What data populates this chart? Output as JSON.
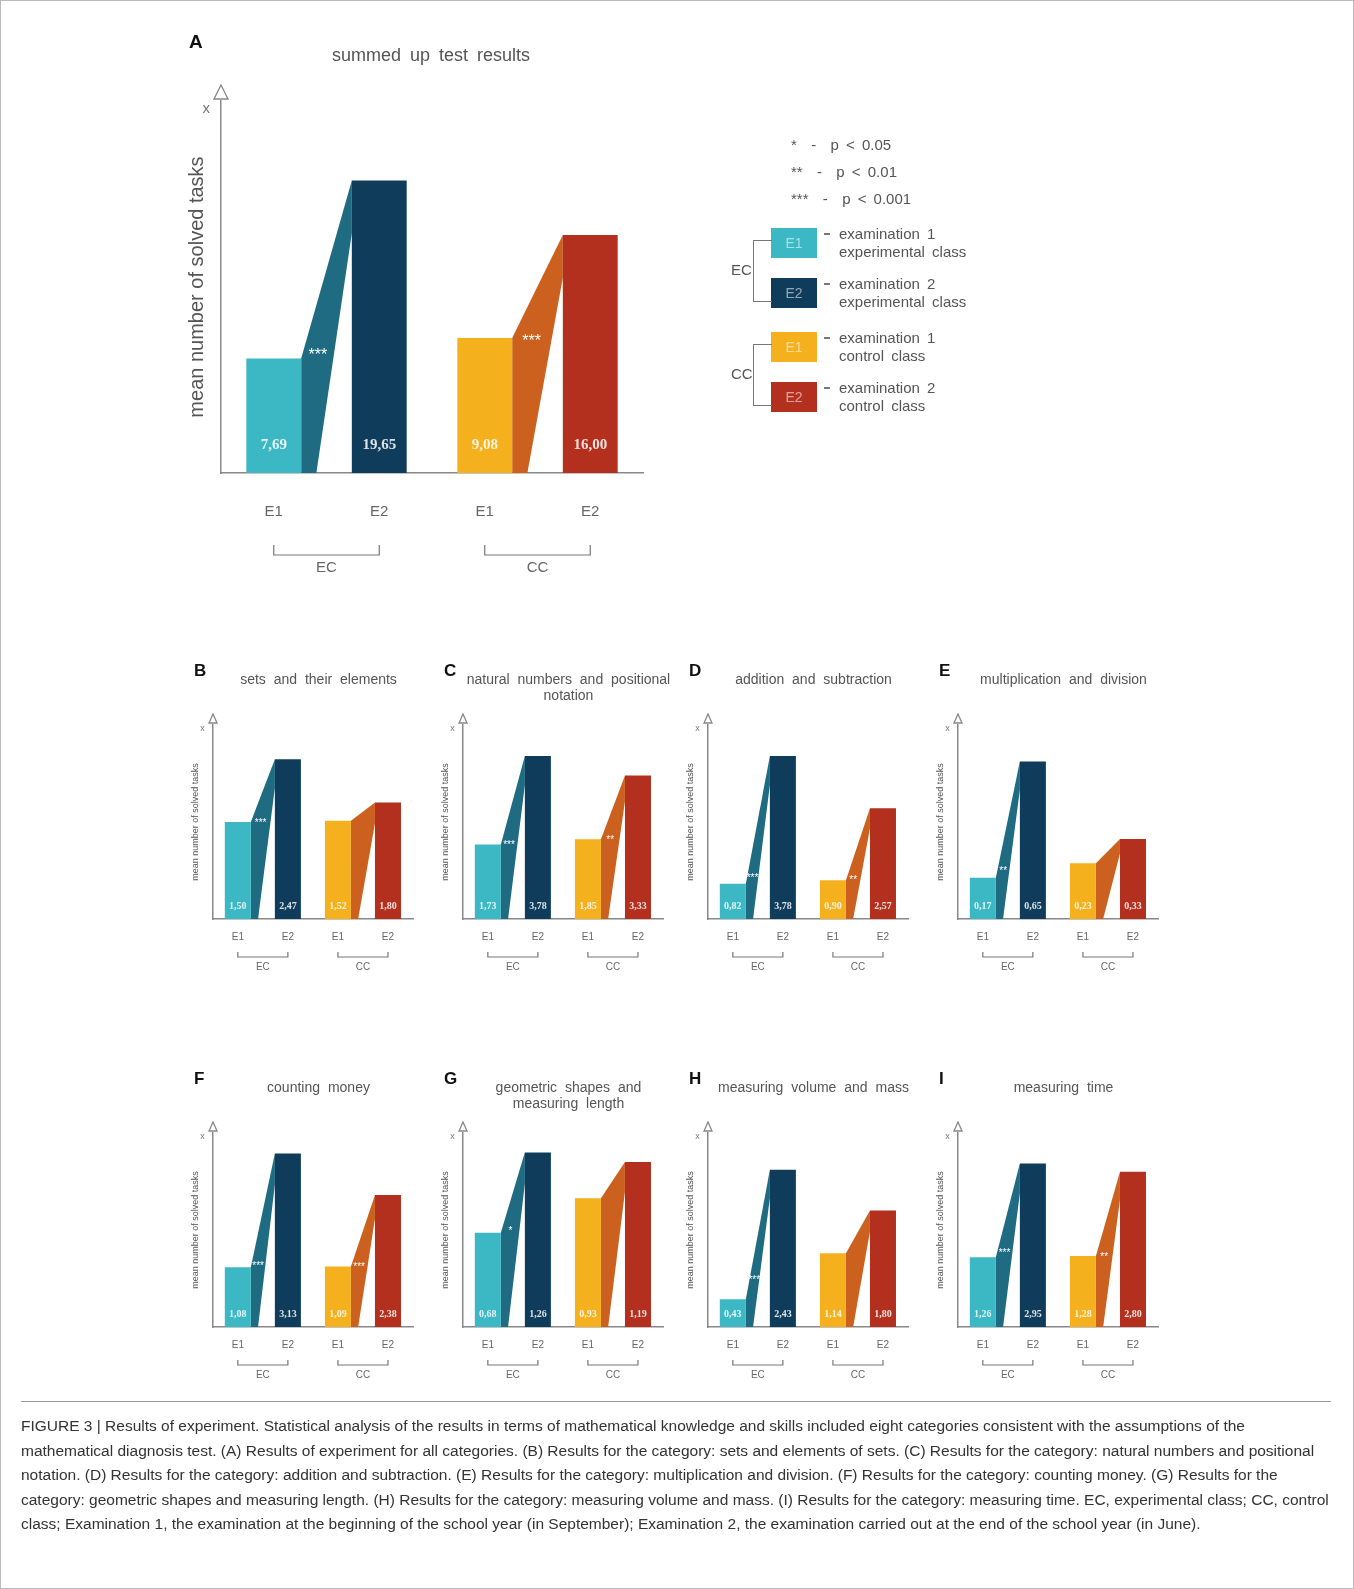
{
  "chart_data": [
    {
      "type": "bar",
      "title": "summed up test results",
      "ylabel": "mean number of solved tasks",
      "categories": [
        "E1",
        "E2",
        "E1",
        "E2"
      ],
      "stacked": true,
      "tick_labels": "x",
      "grid": false,
      "legend": "right",
      "series": [
        {
          "name": "examination 1 experimental class",
          "color": "#3bb8c4",
          "values": [
            7.69,
            null,
            null,
            null
          ],
          "value_labels": [
            "7,69",
            null,
            null,
            null
          ]
        },
        {
          "name": "examination 2 experimental class",
          "color": "#0e3c5a",
          "values": [
            null,
            19.65,
            null,
            null
          ],
          "value_labels": [
            null,
            "19,65",
            null,
            null
          ]
        },
        {
          "name": "examination 1 control class",
          "color": "#f5b01e",
          "values": [
            null,
            null,
            9.08,
            null
          ],
          "value_labels": [
            null,
            null,
            "9,08",
            null
          ]
        },
        {
          "name": "examination 2 control class",
          "color": "#b3301f",
          "values": [
            null,
            null,
            null,
            16.0
          ],
          "value_labels": [
            null,
            null,
            null,
            "16,00"
          ]
        }
      ],
      "annotations": [
        "A",
        "x",
        "EC",
        "CC",
        "***",
        "***",
        "*  -  p < 0.05",
        "**  -  p < 0.01",
        "***  -  p < 0.001"
      ]
    },
    {
      "type": "bar",
      "title": "sets and their elements",
      "ylabel": "mean number of solved tasks",
      "categories": [
        "E1",
        "E2",
        "E1",
        "E2"
      ],
      "tick_labels": "x",
      "grid": false,
      "colors": [
        "#3bb8c4",
        "#0e3c5a",
        "#f5b01e",
        "#b3301f"
      ],
      "values": [
        1.5,
        2.47,
        1.52,
        1.8
      ],
      "value_labels": [
        "1,50",
        "2,47",
        "1,52",
        "1,80"
      ],
      "annotations": [
        "B",
        "x",
        "EC",
        "CC",
        "***"
      ]
    },
    {
      "type": "bar",
      "title": "natural numbers and positional notation",
      "ylabel": "mean number of solved tasks",
      "categories": [
        "E1",
        "E2",
        "E1",
        "E2"
      ],
      "tick_labels": "x",
      "grid": false,
      "colors": [
        "#3bb8c4",
        "#0e3c5a",
        "#f5b01e",
        "#b3301f"
      ],
      "values": [
        1.73,
        3.78,
        1.85,
        3.33
      ],
      "value_labels": [
        "1,73",
        "3,78",
        "1,85",
        "3,33"
      ],
      "annotations": [
        "C",
        "x",
        "EC",
        "CC",
        "***",
        "**"
      ]
    },
    {
      "type": "bar",
      "title": "addition and subtraction",
      "ylabel": "mean number of solved tasks",
      "categories": [
        "E1",
        "E2",
        "E1",
        "E2"
      ],
      "tick_labels": "x",
      "grid": false,
      "colors": [
        "#3bb8c4",
        "#0e3c5a",
        "#f5b01e",
        "#b3301f"
      ],
      "values": [
        0.82,
        3.78,
        0.9,
        2.57
      ],
      "value_labels": [
        "0,82",
        "3,78",
        "0,90",
        "2,57"
      ],
      "annotations": [
        "D",
        "x",
        "EC",
        "CC",
        "***",
        "**"
      ]
    },
    {
      "type": "bar",
      "title": "multiplication and division",
      "ylabel": "mean number of solved tasks",
      "categories": [
        "E1",
        "E2",
        "E1",
        "E2"
      ],
      "tick_labels": "x",
      "grid": false,
      "colors": [
        "#3bb8c4",
        "#0e3c5a",
        "#f5b01e",
        "#b3301f"
      ],
      "values": [
        0.17,
        0.65,
        0.23,
        0.33
      ],
      "value_labels": [
        "0,17",
        "0,65",
        "0,23",
        "0,33"
      ],
      "annotations": [
        "E",
        "x",
        "EC",
        "CC",
        "**"
      ]
    },
    {
      "type": "bar",
      "title": "counting money",
      "ylabel": "mean number of solved tasks",
      "categories": [
        "E1",
        "E2",
        "E1",
        "E2"
      ],
      "tick_labels": "x",
      "grid": false,
      "colors": [
        "#3bb8c4",
        "#0e3c5a",
        "#f5b01e",
        "#b3301f"
      ],
      "values": [
        1.08,
        3.13,
        1.09,
        2.38
      ],
      "value_labels": [
        "1,08",
        "3,13",
        "1,09",
        "2,38"
      ],
      "annotations": [
        "F",
        "x",
        "EC",
        "CC",
        "***",
        "***"
      ]
    },
    {
      "type": "bar",
      "title": "geometric shapes and measuring length",
      "ylabel": "mean number of solved tasks",
      "categories": [
        "E1",
        "E2",
        "E1",
        "E2"
      ],
      "tick_labels": "x",
      "grid": false,
      "colors": [
        "#3bb8c4",
        "#0e3c5a",
        "#f5b01e",
        "#b3301f"
      ],
      "values": [
        0.68,
        1.26,
        0.93,
        1.19
      ],
      "value_labels": [
        "0,68",
        "1,26",
        "0,93",
        "1,19"
      ],
      "annotations": [
        "G",
        "x",
        "EC",
        "CC",
        "*"
      ]
    },
    {
      "type": "bar",
      "title": "measuring volume and mass",
      "ylabel": "mean number of solved tasks",
      "categories": [
        "E1",
        "E2",
        "E1",
        "E2"
      ],
      "tick_labels": "x",
      "grid": false,
      "colors": [
        "#3bb8c4",
        "#0e3c5a",
        "#f5b01e",
        "#b3301f"
      ],
      "values": [
        0.43,
        2.43,
        1.14,
        1.8
      ],
      "value_labels": [
        "0,43",
        "2,43",
        "1,14",
        "1,80"
      ],
      "annotations": [
        "H",
        "x",
        "EC",
        "CC",
        "***"
      ]
    },
    {
      "type": "bar",
      "title": "measuring time",
      "ylabel": "mean number of solved tasks",
      "categories": [
        "E1",
        "E2",
        "E1",
        "E2"
      ],
      "tick_labels": "x",
      "grid": false,
      "colors": [
        "#3bb8c4",
        "#0e3c5a",
        "#f5b01e",
        "#b3301f"
      ],
      "values": [
        1.26,
        2.95,
        1.28,
        2.8
      ],
      "value_labels": [
        "1,26",
        "2,95",
        "1,28",
        "2,80"
      ],
      "annotations": [
        "I",
        "x",
        "EC",
        "CC",
        "***",
        "**"
      ]
    },
    {
      "type": "other",
      "annotations": [
        "FIGURE 3 | Results of experiment. Statistical analysis of the results in terms of mathematical knowledge and skills included eight categories consistent with the assumptions of the mathematical diagnosis test. (A) Results of experiment for all categories. (B) Results for the category: sets and elements of sets. (C) Results for the category: natural numbers and positional notation. (D) Results for the category: addition and subtraction. (E) Results for the category: multiplication and division. (F) Results for the category: counting money. (G) Results for the category: geometric shapes and measuring length. (H) Results for the category: measuring volume and mass. (I) Results for the category: measuring time. EC, experimental class; CC, control class; Examination 1, the examination at the beginning of the school year (in September); Examination 2, the examination carried out at the end of the school year (in June)."
      ]
    }
  ]
}
